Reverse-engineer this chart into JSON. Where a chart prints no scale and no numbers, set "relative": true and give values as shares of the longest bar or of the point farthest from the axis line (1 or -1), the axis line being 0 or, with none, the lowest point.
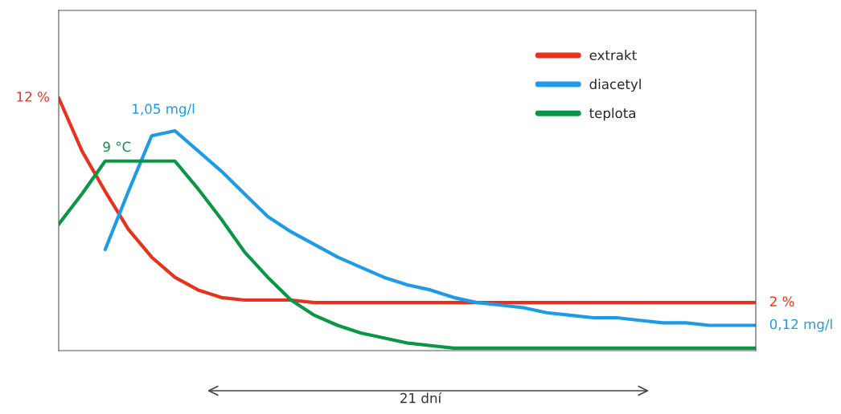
{
  "chart_data": {
    "type": "line",
    "relative": true,
    "legend": "top right",
    "categories": [
      null,
      null,
      null,
      null,
      null,
      null,
      null,
      null,
      null,
      null,
      null,
      null,
      null,
      null,
      null,
      null,
      null,
      null,
      null,
      null,
      null,
      null,
      null,
      null,
      null,
      null,
      null,
      null,
      null,
      null,
      null
    ],
    "series": [
      {
        "name": "extrakt",
        "color": "#e8321e",
        "values": [
          1.0,
          0.79,
          0.63,
          0.48,
          0.37,
          0.29,
          0.24,
          0.21,
          0.2,
          0.2,
          0.2,
          0.19,
          0.19,
          0.19,
          0.19,
          0.19,
          0.19,
          0.19,
          0.19,
          0.19,
          0.19,
          0.19,
          0.19,
          0.19,
          0.19,
          0.19,
          0.19,
          0.19,
          0.19,
          0.19,
          0.19
        ]
      },
      {
        "name": "diacetyl",
        "color": "#1e9be6",
        "values": [
          null,
          null,
          0.4,
          0.63,
          0.85,
          0.87,
          0.79,
          0.71,
          0.62,
          0.53,
          0.47,
          0.42,
          0.37,
          0.33,
          0.29,
          0.26,
          0.24,
          0.21,
          0.19,
          0.18,
          0.17,
          0.15,
          0.14,
          0.13,
          0.13,
          0.12,
          0.11,
          0.11,
          0.1,
          0.1,
          0.1
        ]
      },
      {
        "name": "teplota",
        "color": "#0a9646",
        "values": [
          0.5,
          0.62,
          0.75,
          0.75,
          0.75,
          0.75,
          0.64,
          0.52,
          0.39,
          0.29,
          0.2,
          0.14,
          0.1,
          0.07,
          0.05,
          0.03,
          0.02,
          0.01,
          0.01,
          0.01,
          0.01,
          0.01,
          0.01,
          0.01,
          0.01,
          0.01,
          0.01,
          0.01,
          0.01,
          0.01,
          0.01
        ]
      }
    ],
    "annotations": [
      "12 %",
      "2 %",
      "1,05 mg/l",
      "0,12 mg/l",
      "9 °C",
      "21 dní"
    ]
  }
}
